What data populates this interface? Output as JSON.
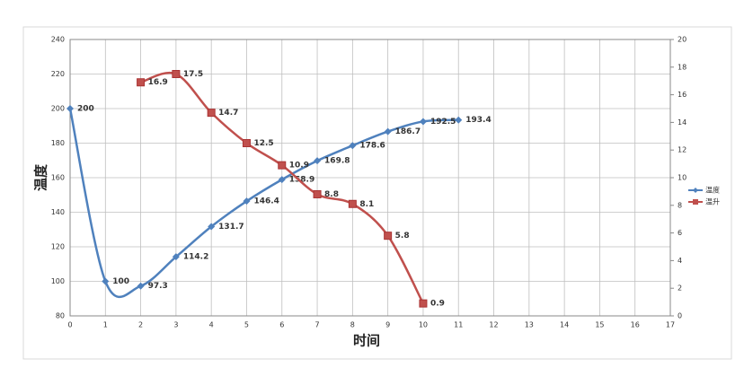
{
  "chart_data": {
    "type": "line",
    "x_label": "时间",
    "y_label": "温度",
    "xlim": [
      0,
      17
    ],
    "xticks": [
      0,
      1,
      2,
      3,
      4,
      5,
      6,
      7,
      8,
      9,
      10,
      11,
      12,
      13,
      14,
      15,
      16,
      17
    ],
    "ylim": [
      80,
      240
    ],
    "yticks": [
      80,
      100,
      120,
      140,
      160,
      180,
      200,
      220,
      240
    ],
    "y2lim": [
      0,
      20
    ],
    "y2ticks": [
      0,
      2,
      4,
      6,
      8,
      10,
      12,
      14,
      16,
      18,
      20
    ],
    "grid": true,
    "legend": "right",
    "series": [
      {
        "name": "温度",
        "color": "#4f81bd",
        "x": [
          0,
          1,
          2,
          3,
          4,
          5,
          6,
          7,
          8,
          9,
          10,
          11
        ],
        "values": [
          200,
          100,
          97.3,
          114.2,
          131.7,
          146.4,
          158.9,
          169.8,
          178.6,
          186.7,
          192.5,
          193.4
        ]
      },
      {
        "name": "温升",
        "color": "#c0504d",
        "axis": "y2",
        "x": [
          2,
          3,
          4,
          5,
          6,
          7,
          8,
          9,
          10
        ],
        "values": [
          16.9,
          17.5,
          14.7,
          12.5,
          10.9,
          8.8,
          8.1,
          5.8,
          0.9
        ]
      }
    ]
  }
}
